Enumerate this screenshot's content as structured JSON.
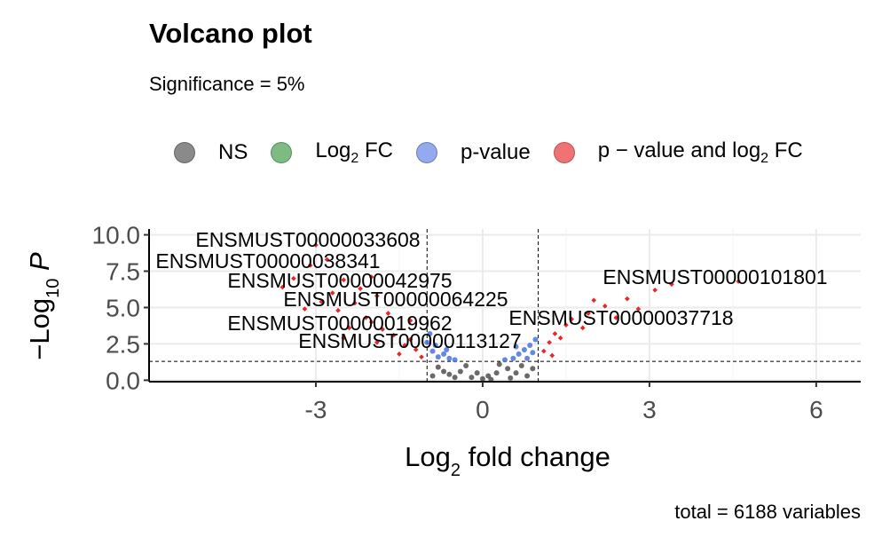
{
  "chart_data": {
    "type": "scatter",
    "title": "Volcano plot",
    "subtitle": "Significance = 5%",
    "xlabel": "Log2 fold change",
    "ylabel": "-Log10 P",
    "caption": "total = 6188 variables",
    "xlim": [
      -6.0,
      6.8
    ],
    "ylim": [
      -0.1,
      10.4
    ],
    "x_ticks": [
      -3,
      0,
      3,
      6
    ],
    "x_tick_labels": [
      "-3",
      "0",
      "3",
      "6"
    ],
    "y_ticks": [
      0.0,
      2.5,
      5.0,
      7.5,
      10.0
    ],
    "y_tick_labels": [
      "0.0",
      "2.5",
      "5.0",
      "7.5",
      "10.0"
    ],
    "thresholds": {
      "log2fc": 1.0,
      "neg_log10_p": 1.3
    },
    "grid": true,
    "legend_position": "top",
    "legend": [
      {
        "key": "ns",
        "label": "NS",
        "color": "#808080"
      },
      {
        "key": "fc",
        "label_main": "Log",
        "label_sub": "2",
        "label_tail": " FC",
        "color": "#5aae61"
      },
      {
        "key": "p",
        "label": "p-value",
        "color": "#6a8fe8"
      },
      {
        "key": "both",
        "label_main": "p − value and log",
        "label_sub": "2",
        "label_tail": " FC",
        "color": "#e8262a"
      }
    ],
    "labeled_points": [
      {
        "name": "ENSMUST00000033608",
        "x": -3.0,
        "y": 9.3
      },
      {
        "name": "ENSMUST00000038341",
        "x": -3.1,
        "y": 7.9
      },
      {
        "name": "ENSMUST00000042975",
        "x": -2.5,
        "y": 6.9
      },
      {
        "name": "ENSMUST00000064225",
        "x": -1.9,
        "y": 5.8
      },
      {
        "name": "ENSMUST00000019962",
        "x": -2.1,
        "y": 4.3
      },
      {
        "name": "ENSMUST00000113127",
        "x": -1.3,
        "y": 2.8
      },
      {
        "name": "ENSMUST00000101801",
        "x": 3.4,
        "y": 6.6
      },
      {
        "name": "ENSMUST00000037718",
        "x": 1.5,
        "y": 3.8
      }
    ],
    "series": [
      {
        "name": "NS",
        "color": "#505050",
        "points": [
          [
            -0.6,
            0.4
          ],
          [
            -0.4,
            0.6
          ],
          [
            -0.2,
            0.2
          ],
          [
            0.0,
            0.1
          ],
          [
            0.1,
            0.3
          ],
          [
            0.25,
            0.5
          ],
          [
            0.45,
            0.8
          ],
          [
            0.6,
            0.5
          ],
          [
            0.8,
            0.3
          ],
          [
            -0.8,
            0.9
          ],
          [
            -0.3,
            1.0
          ],
          [
            0.3,
            1.1
          ],
          [
            0.7,
            1.0
          ],
          [
            -0.9,
            0.3
          ],
          [
            0.9,
            0.8
          ],
          [
            0.15,
            0.05
          ],
          [
            -0.1,
            0.5
          ],
          [
            -0.5,
            0.2
          ],
          [
            0.5,
            0.15
          ],
          [
            -0.7,
            0.6
          ]
        ]
      },
      {
        "name": "p-value",
        "color": "#4a73e0",
        "points": [
          [
            -1.0,
            2.6
          ],
          [
            -0.9,
            2.0
          ],
          [
            -0.8,
            1.6
          ],
          [
            -0.7,
            1.8
          ],
          [
            -0.6,
            1.5
          ],
          [
            -0.5,
            1.4
          ],
          [
            -0.95,
            3.2
          ],
          [
            -0.85,
            2.4
          ],
          [
            0.55,
            1.5
          ],
          [
            0.65,
            1.8
          ],
          [
            0.75,
            2.1
          ],
          [
            0.85,
            2.4
          ],
          [
            0.95,
            2.8
          ],
          [
            0.4,
            1.4
          ],
          [
            0.9,
            1.9
          ],
          [
            -0.65,
            2.1
          ],
          [
            0.6,
            2.3
          ],
          [
            0.8,
            1.5
          ]
        ]
      },
      {
        "name": "p - value and log2 FC",
        "color": "#e8262a",
        "points": [
          [
            -3.0,
            9.3
          ],
          [
            -3.1,
            7.9
          ],
          [
            -2.5,
            6.9
          ],
          [
            -1.9,
            5.8
          ],
          [
            -2.1,
            4.3
          ],
          [
            -1.3,
            2.8
          ],
          [
            -2.8,
            8.3
          ],
          [
            -3.4,
            7.0
          ],
          [
            -2.7,
            6.0
          ],
          [
            -2.3,
            5.3
          ],
          [
            -2.6,
            4.8
          ],
          [
            -2.0,
            4.0
          ],
          [
            -1.8,
            3.5
          ],
          [
            -1.6,
            3.1
          ],
          [
            -1.4,
            2.4
          ],
          [
            -1.2,
            2.1
          ],
          [
            -1.5,
            1.8
          ],
          [
            -3.6,
            6.4
          ],
          [
            -2.9,
            5.4
          ],
          [
            -2.4,
            3.6
          ],
          [
            -1.7,
            4.6
          ],
          [
            -2.2,
            6.3
          ],
          [
            -1.1,
            1.6
          ],
          [
            -1.9,
            2.6
          ],
          [
            -2.5,
            2.9
          ],
          [
            -3.2,
            4.9
          ],
          [
            -1.3,
            4.1
          ],
          [
            -2.0,
            7.1
          ],
          [
            1.5,
            3.8
          ],
          [
            1.3,
            3.2
          ],
          [
            1.2,
            2.6
          ],
          [
            1.1,
            2.0
          ],
          [
            1.6,
            4.2
          ],
          [
            1.9,
            4.6
          ],
          [
            2.2,
            5.1
          ],
          [
            2.6,
            5.6
          ],
          [
            3.1,
            6.2
          ],
          [
            3.4,
            6.6
          ],
          [
            4.6,
            6.8
          ],
          [
            1.4,
            2.9
          ],
          [
            1.8,
            3.6
          ],
          [
            2.4,
            4.3
          ],
          [
            2.0,
            5.5
          ],
          [
            1.25,
            1.7
          ],
          [
            2.8,
            4.9
          ]
        ]
      }
    ]
  }
}
